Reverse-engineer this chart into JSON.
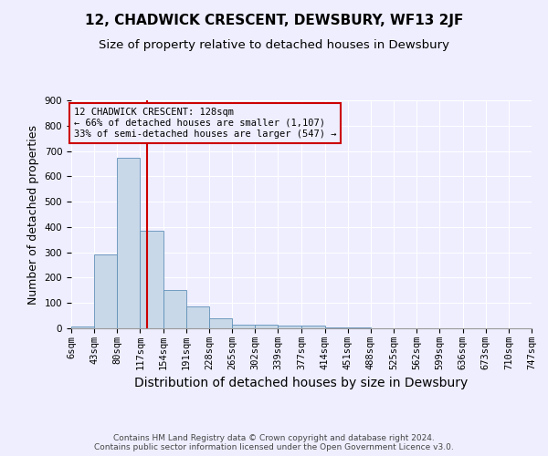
{
  "title": "12, CHADWICK CRESCENT, DEWSBURY, WF13 2JF",
  "subtitle": "Size of property relative to detached houses in Dewsbury",
  "xlabel": "Distribution of detached houses by size in Dewsbury",
  "ylabel": "Number of detached properties",
  "footer_line1": "Contains HM Land Registry data © Crown copyright and database right 2024.",
  "footer_line2": "Contains public sector information licensed under the Open Government Licence v3.0.",
  "annotation_line1": "12 CHADWICK CRESCENT: 128sqm",
  "annotation_line2": "← 66% of detached houses are smaller (1,107)",
  "annotation_line3": "33% of semi-detached houses are larger (547) →",
  "bar_color": "#c8d8e8",
  "bar_edge_color": "#6090b8",
  "marker_line_color": "#cc0000",
  "annotation_box_edge_color": "#cc0000",
  "bin_edges": [
    6,
    43,
    80,
    117,
    154,
    191,
    228,
    265,
    302,
    339,
    377,
    414,
    451,
    488,
    525,
    562,
    599,
    636,
    673,
    710,
    747
  ],
  "bar_heights": [
    8,
    292,
    672,
    385,
    152,
    87,
    38,
    15,
    14,
    10,
    11,
    5,
    2,
    1,
    0,
    0,
    0,
    0,
    0,
    0
  ],
  "marker_x": 128,
  "ylim": [
    0,
    900
  ],
  "xlim": [
    6,
    747
  ],
  "yticks": [
    0,
    100,
    200,
    300,
    400,
    500,
    600,
    700,
    800,
    900
  ],
  "xtick_labels": [
    "6sqm",
    "43sqm",
    "80sqm",
    "117sqm",
    "154sqm",
    "191sqm",
    "228sqm",
    "265sqm",
    "302sqm",
    "339sqm",
    "377sqm",
    "414sqm",
    "451sqm",
    "488sqm",
    "525sqm",
    "562sqm",
    "599sqm",
    "636sqm",
    "673sqm",
    "710sqm",
    "747sqm"
  ],
  "background_color": "#eeeeff",
  "grid_color": "#ffffff",
  "title_fontsize": 11,
  "subtitle_fontsize": 9.5,
  "axis_label_fontsize": 9,
  "tick_fontsize": 7.5,
  "annotation_fontsize": 7.5,
  "footer_fontsize": 6.5
}
